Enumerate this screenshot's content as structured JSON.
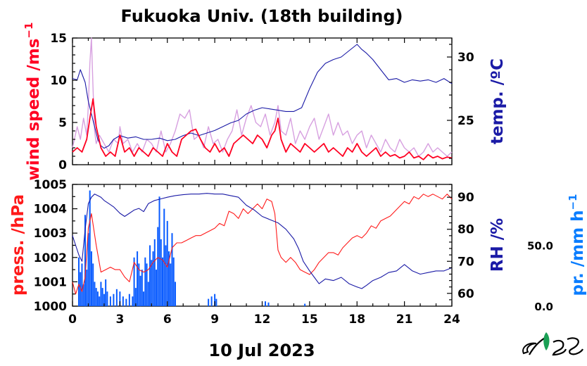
{
  "title": "Fukuoka Univ. (18th building)",
  "date_label": "10 Jul 2023",
  "colors": {
    "wind": "#ff0022",
    "wind_gust": "#d7a0e0",
    "temperature": "#1a1aa6",
    "pressure": "#ff1a1a",
    "rh": "#1a1aa6",
    "precip": "#0a5cff"
  },
  "chart_data": [
    {
      "type": "line",
      "panel": "top",
      "xlim": [
        0,
        24
      ],
      "x_ticks": [
        "0",
        "3",
        "6",
        "9",
        "12",
        "15",
        "18",
        "21",
        "24"
      ],
      "left_axis": {
        "label": "wind speed /ms",
        "label_sup": "−1",
        "ylim": [
          0,
          15
        ],
        "ticks": [
          "0",
          "5",
          "10",
          "15"
        ]
      },
      "right_axis": {
        "label": "temp. /ºC",
        "ylim": [
          21.5,
          31.5
        ],
        "ticks": [
          "25",
          "30"
        ]
      },
      "series": [
        {
          "axis": "left",
          "style": "gust",
          "x": [
            0.0,
            0.3,
            0.5,
            0.7,
            0.9,
            1.0,
            1.1,
            1.2,
            1.3,
            1.4,
            1.5,
            1.7,
            2.0,
            2.3,
            2.6,
            2.9,
            3.0,
            3.2,
            3.5,
            3.8,
            4.1,
            4.4,
            4.7,
            5.0,
            5.3,
            5.6,
            5.9,
            6.2,
            6.5,
            6.8,
            7.1,
            7.4,
            7.7,
            8.0,
            8.3,
            8.6,
            8.9,
            9.2,
            9.5,
            9.8,
            10.1,
            10.4,
            10.7,
            11.0,
            11.3,
            11.6,
            11.9,
            12.2,
            12.5,
            12.8,
            13.0,
            13.2,
            13.5,
            13.8,
            14.1,
            14.4,
            14.7,
            15.0,
            15.3,
            15.6,
            15.9,
            16.2,
            16.5,
            16.8,
            17.1,
            17.4,
            17.7,
            18.0,
            18.3,
            18.6,
            18.9,
            19.2,
            19.5,
            19.8,
            20.1,
            20.4,
            20.7,
            21.0,
            21.3,
            21.6,
            21.9,
            22.2,
            22.5,
            22.8,
            23.1,
            23.4,
            23.7,
            24.0
          ],
          "y": [
            2.0,
            4.5,
            3.0,
            5.5,
            3.5,
            7.0,
            12.0,
            15.0,
            9.0,
            4.0,
            2.5,
            3.5,
            2.5,
            1.5,
            3.0,
            2.5,
            4.5,
            2.5,
            3.0,
            1.5,
            2.5,
            1.5,
            3.0,
            2.5,
            1.5,
            4.0,
            1.5,
            2.5,
            4.0,
            6.0,
            5.5,
            6.5,
            3.0,
            3.5,
            2.0,
            4.5,
            2.5,
            3.0,
            1.5,
            3.0,
            4.0,
            6.5,
            3.5,
            5.5,
            7.0,
            5.0,
            4.5,
            6.0,
            3.5,
            5.0,
            7.0,
            4.0,
            3.5,
            5.5,
            2.5,
            4.0,
            3.0,
            4.5,
            5.5,
            3.0,
            4.5,
            6.0,
            3.5,
            5.0,
            3.5,
            4.0,
            2.5,
            3.5,
            4.0,
            2.0,
            3.5,
            2.5,
            1.5,
            3.0,
            2.0,
            1.5,
            3.0,
            2.0,
            1.5,
            2.0,
            1.0,
            1.5,
            2.5,
            1.5,
            2.0,
            1.5,
            1.0,
            1.5
          ]
        },
        {
          "axis": "left",
          "style": "mean",
          "x": [
            0.0,
            0.3,
            0.6,
            0.9,
            1.1,
            1.3,
            1.5,
            1.8,
            2.1,
            2.4,
            2.7,
            3.0,
            3.3,
            3.6,
            3.9,
            4.2,
            4.5,
            4.8,
            5.1,
            5.4,
            5.7,
            6.0,
            6.3,
            6.6,
            6.9,
            7.2,
            7.5,
            7.8,
            8.1,
            8.4,
            8.7,
            9.0,
            9.3,
            9.6,
            9.9,
            10.2,
            10.5,
            10.8,
            11.1,
            11.4,
            11.7,
            12.0,
            12.3,
            12.6,
            12.8,
            13.0,
            13.2,
            13.5,
            13.8,
            14.1,
            14.4,
            14.7,
            15.0,
            15.3,
            15.6,
            15.9,
            16.2,
            16.5,
            16.8,
            17.1,
            17.4,
            17.7,
            18.0,
            18.3,
            18.6,
            18.9,
            19.2,
            19.5,
            19.8,
            20.1,
            20.4,
            20.7,
            21.0,
            21.3,
            21.6,
            21.9,
            22.2,
            22.5,
            22.8,
            23.1,
            23.4,
            23.7,
            24.0
          ],
          "y": [
            1.5,
            2.0,
            1.5,
            3.0,
            5.5,
            7.8,
            4.5,
            2.0,
            1.0,
            1.5,
            1.0,
            3.5,
            1.5,
            2.0,
            1.0,
            2.0,
            1.5,
            1.0,
            2.0,
            1.5,
            1.0,
            2.5,
            1.5,
            1.0,
            3.0,
            3.5,
            4.0,
            4.2,
            3.0,
            2.0,
            1.5,
            2.5,
            1.5,
            2.0,
            1.0,
            2.5,
            3.0,
            3.5,
            3.0,
            2.5,
            3.5,
            3.0,
            2.0,
            3.5,
            4.0,
            5.5,
            3.0,
            1.5,
            2.5,
            2.0,
            1.5,
            2.5,
            2.0,
            1.5,
            2.0,
            2.5,
            1.5,
            2.0,
            1.5,
            1.0,
            2.0,
            1.5,
            2.5,
            1.5,
            1.0,
            1.5,
            2.0,
            1.0,
            1.5,
            1.0,
            1.2,
            0.8,
            1.0,
            1.5,
            0.8,
            1.0,
            0.6,
            1.2,
            0.8,
            1.0,
            0.7,
            0.9,
            0.8
          ]
        },
        {
          "axis": "right",
          "style": "temp",
          "x": [
            0.0,
            0.3,
            0.5,
            0.8,
            1.0,
            1.2,
            1.4,
            1.6,
            1.8,
            2.0,
            2.3,
            2.6,
            3.0,
            3.5,
            4.0,
            4.5,
            5.0,
            5.5,
            6.0,
            6.5,
            7.0,
            7.5,
            8.0,
            8.5,
            9.0,
            9.5,
            10.0,
            10.5,
            11.0,
            11.5,
            12.0,
            12.5,
            13.0,
            13.5,
            14.0,
            14.5,
            15.0,
            15.5,
            16.0,
            16.5,
            17.0,
            17.5,
            18.0,
            18.3,
            18.6,
            19.0,
            19.5,
            20.0,
            20.5,
            21.0,
            21.5,
            22.0,
            22.5,
            23.0,
            23.5,
            24.0
          ],
          "y": [
            28.3,
            28.2,
            29.0,
            28.0,
            26.5,
            25.5,
            24.5,
            23.5,
            23.0,
            22.8,
            23.0,
            23.5,
            23.8,
            23.6,
            23.7,
            23.5,
            23.5,
            23.6,
            23.4,
            23.5,
            23.8,
            24.0,
            23.8,
            24.0,
            24.2,
            24.5,
            24.8,
            25.0,
            25.5,
            25.8,
            26.0,
            25.9,
            25.8,
            25.7,
            25.7,
            26.0,
            27.5,
            28.8,
            29.5,
            29.8,
            30.0,
            30.5,
            31.0,
            30.6,
            30.3,
            29.8,
            29.0,
            28.2,
            28.3,
            28.0,
            28.2,
            28.1,
            28.2,
            28.0,
            28.3,
            27.9
          ]
        }
      ]
    },
    {
      "type": "line",
      "panel": "bottom",
      "xlim": [
        0,
        24
      ],
      "x_ticks": [
        "0",
        "3",
        "6",
        "9",
        "12",
        "15",
        "18",
        "21",
        "24"
      ],
      "left_axis": {
        "label": "press. /hPa",
        "ylim": [
          1000,
          1005
        ],
        "ticks": [
          "1000",
          "1001",
          "1002",
          "1003",
          "1004",
          "1005"
        ]
      },
      "right_axis": {
        "label": "RH /%",
        "ylim": [
          56,
          94
        ],
        "ticks": [
          "60",
          "70",
          "80",
          "90"
        ]
      },
      "precip_axis": {
        "label": "pr. /mm h",
        "label_sup": "−1",
        "ylim": [
          0,
          100
        ],
        "ticks": [
          "0.0",
          "50.0"
        ]
      },
      "series": [
        {
          "axis": "left",
          "style": "pressure",
          "x": [
            0.0,
            0.2,
            0.4,
            0.6,
            0.8,
            1.0,
            1.2,
            1.5,
            1.8,
            2.1,
            2.4,
            2.7,
            3.0,
            3.3,
            3.6,
            3.9,
            4.2,
            4.5,
            4.8,
            5.1,
            5.4,
            5.7,
            6.0,
            6.3,
            6.6,
            6.9,
            7.2,
            7.5,
            7.8,
            8.1,
            8.4,
            8.7,
            9.0,
            9.3,
            9.6,
            9.9,
            10.2,
            10.5,
            10.8,
            11.1,
            11.4,
            11.7,
            12.0,
            12.3,
            12.6,
            12.8,
            13.0,
            13.2,
            13.5,
            13.8,
            14.1,
            14.4,
            14.7,
            15.0,
            15.3,
            15.6,
            15.9,
            16.2,
            16.5,
            16.8,
            17.1,
            17.4,
            17.7,
            18.0,
            18.3,
            18.6,
            18.9,
            19.2,
            19.5,
            19.8,
            20.1,
            20.4,
            20.7,
            21.0,
            21.3,
            21.6,
            21.9,
            22.2,
            22.5,
            22.8,
            23.1,
            23.4,
            23.7,
            24.0
          ],
          "y": [
            1001.0,
            1000.5,
            1000.9,
            1000.6,
            1001.2,
            1003.2,
            1003.8,
            1002.5,
            1001.4,
            1001.5,
            1001.6,
            1001.5,
            1001.5,
            1001.2,
            1001.0,
            1001.8,
            1001.5,
            1001.4,
            1001.5,
            1001.8,
            1002.0,
            1001.9,
            1001.6,
            1002.4,
            1002.6,
            1002.6,
            1002.7,
            1002.8,
            1002.9,
            1002.9,
            1003.0,
            1003.1,
            1003.2,
            1003.4,
            1003.3,
            1003.9,
            1003.8,
            1003.6,
            1004.0,
            1003.8,
            1004.0,
            1004.2,
            1004.0,
            1004.4,
            1004.3,
            1003.8,
            1002.3,
            1002.0,
            1001.8,
            1002.0,
            1001.8,
            1001.5,
            1001.4,
            1001.3,
            1001.5,
            1001.8,
            1002.0,
            1002.2,
            1002.2,
            1002.1,
            1002.4,
            1002.6,
            1002.8,
            1002.9,
            1002.8,
            1003.0,
            1003.3,
            1003.2,
            1003.5,
            1003.6,
            1003.7,
            1003.9,
            1004.1,
            1004.3,
            1004.2,
            1004.5,
            1004.4,
            1004.6,
            1004.5,
            1004.6,
            1004.5,
            1004.4,
            1004.6,
            1004.4
          ]
        },
        {
          "axis": "right",
          "style": "rh",
          "x": [
            0.0,
            0.2,
            0.4,
            0.6,
            0.8,
            1.0,
            1.2,
            1.4,
            1.6,
            1.8,
            2.0,
            2.3,
            2.6,
            3.0,
            3.3,
            3.6,
            3.9,
            4.2,
            4.5,
            4.8,
            5.2,
            5.6,
            6.0,
            6.5,
            7.0,
            7.5,
            8.0,
            8.5,
            9.0,
            9.5,
            10.0,
            10.5,
            11.0,
            11.5,
            12.0,
            12.5,
            13.0,
            13.5,
            14.0,
            14.3,
            14.6,
            15.0,
            15.3,
            15.6,
            16.0,
            16.5,
            17.0,
            17.5,
            18.0,
            18.3,
            18.6,
            19.0,
            19.5,
            20.0,
            20.5,
            21.0,
            21.5,
            22.0,
            22.5,
            23.0,
            23.5,
            24.0
          ],
          "y": [
            78.0,
            75.0,
            72.0,
            70.0,
            80.0,
            88.0,
            90.0,
            91.0,
            90.5,
            90.0,
            89.0,
            88.0,
            87.0,
            85.0,
            84.0,
            85.0,
            86.0,
            86.5,
            85.5,
            88.0,
            89.0,
            89.5,
            90.0,
            90.5,
            90.8,
            91.0,
            91.0,
            91.2,
            91.0,
            91.0,
            90.5,
            90.0,
            87.5,
            86.0,
            84.0,
            83.0,
            82.0,
            80.0,
            77.0,
            74.0,
            70.0,
            67.0,
            65.0,
            63.0,
            64.5,
            64.0,
            65.0,
            63.0,
            62.0,
            61.5,
            62.5,
            64.0,
            65.0,
            66.5,
            67.0,
            69.0,
            67.0,
            66.0,
            66.5,
            67.0,
            67.0,
            68.0
          ]
        },
        {
          "axis": "precip",
          "style": "precip-bars",
          "x": [
            0.4,
            0.5,
            0.6,
            0.7,
            0.8,
            0.9,
            1.0,
            1.1,
            1.2,
            1.3,
            1.4,
            1.5,
            1.6,
            1.7,
            1.8,
            1.9,
            2.0,
            2.1,
            2.2,
            2.4,
            2.6,
            2.8,
            3.0,
            3.2,
            3.4,
            3.6,
            3.8,
            3.9,
            4.0,
            4.1,
            4.2,
            4.3,
            4.4,
            4.5,
            4.6,
            4.7,
            4.8,
            4.9,
            5.0,
            5.1,
            5.2,
            5.3,
            5.4,
            5.5,
            5.6,
            5.7,
            5.8,
            5.9,
            6.0,
            6.1,
            6.2,
            6.3,
            6.4,
            6.5,
            8.6,
            8.8,
            9.0,
            9.1,
            12.2,
            12.4,
            14.7
          ],
          "y": [
            40,
            28,
            35,
            18,
            75,
            30,
            60,
            95,
            45,
            35,
            20,
            15,
            12,
            8,
            20,
            15,
            10,
            22,
            12,
            8,
            10,
            14,
            12,
            8,
            6,
            10,
            8,
            40,
            15,
            45,
            35,
            25,
            30,
            12,
            40,
            35,
            20,
            50,
            38,
            45,
            55,
            30,
            65,
            90,
            55,
            40,
            80,
            50,
            70,
            45,
            35,
            60,
            40,
            20,
            6,
            8,
            10,
            6,
            4,
            3,
            2
          ]
        }
      ]
    }
  ]
}
